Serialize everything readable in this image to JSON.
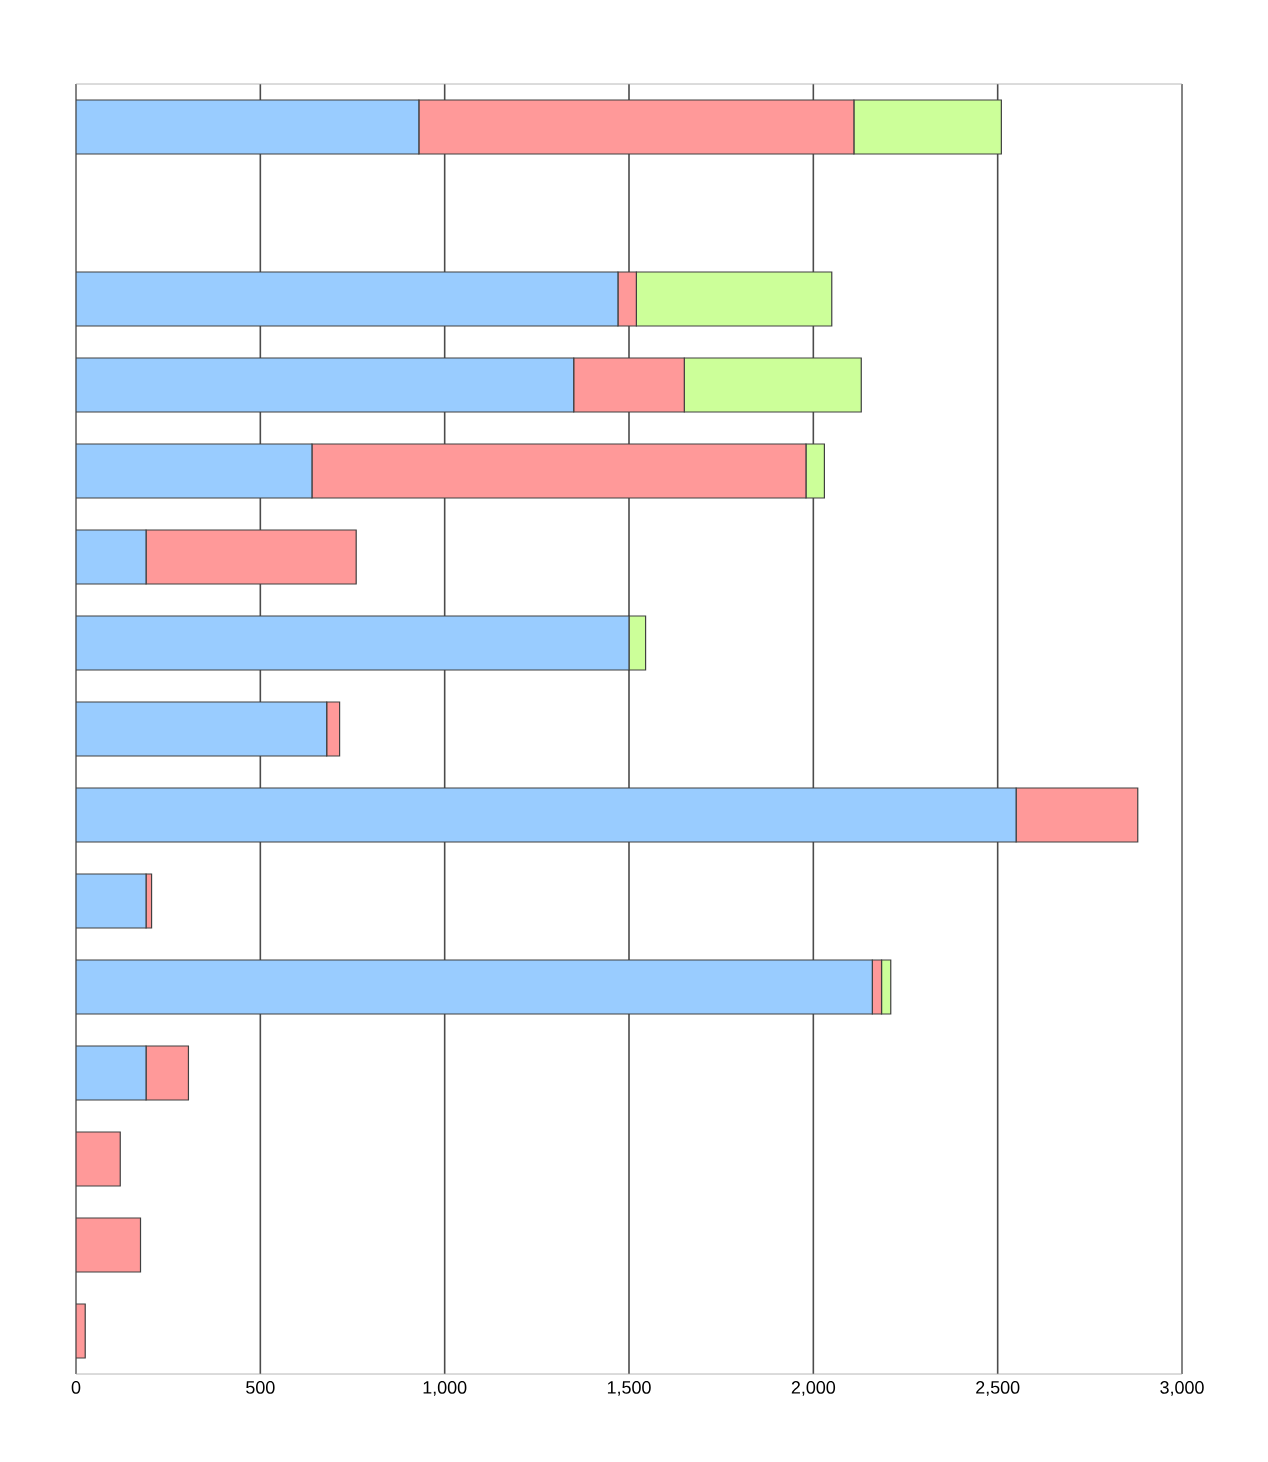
{
  "chart_data": {
    "type": "bar",
    "orientation": "horizontal",
    "stacked": true,
    "categories": [
      null,
      null,
      null,
      null,
      null,
      null,
      null,
      null,
      null,
      null,
      null,
      null,
      null,
      null,
      null
    ],
    "series": [
      {
        "color": "#99ccff",
        "values": [
          930,
          null,
          1470,
          1350,
          640,
          190,
          1500,
          680,
          2550,
          190,
          2160,
          190,
          0,
          0,
          0
        ]
      },
      {
        "color": "#ff9999",
        "values": [
          1180,
          null,
          50,
          300,
          1340,
          570,
          0,
          35,
          330,
          15,
          25,
          115,
          120,
          175,
          25
        ]
      },
      {
        "color": "#ccff99",
        "values": [
          400,
          null,
          530,
          480,
          50,
          0,
          45,
          0,
          0,
          0,
          25,
          0,
          0,
          0,
          0
        ]
      }
    ],
    "xlim": [
      0,
      3000
    ],
    "xticks": [
      0,
      500,
      {
        "value": 1000,
        "label": "1,000"
      },
      {
        "value": 1500,
        "label": "1,500"
      },
      {
        "value": 2000,
        "label": "2,000"
      },
      {
        "value": 2500,
        "label": "2,500"
      },
      {
        "value": 3000,
        "label": "3,000"
      }
    ],
    "grid": "x"
  }
}
